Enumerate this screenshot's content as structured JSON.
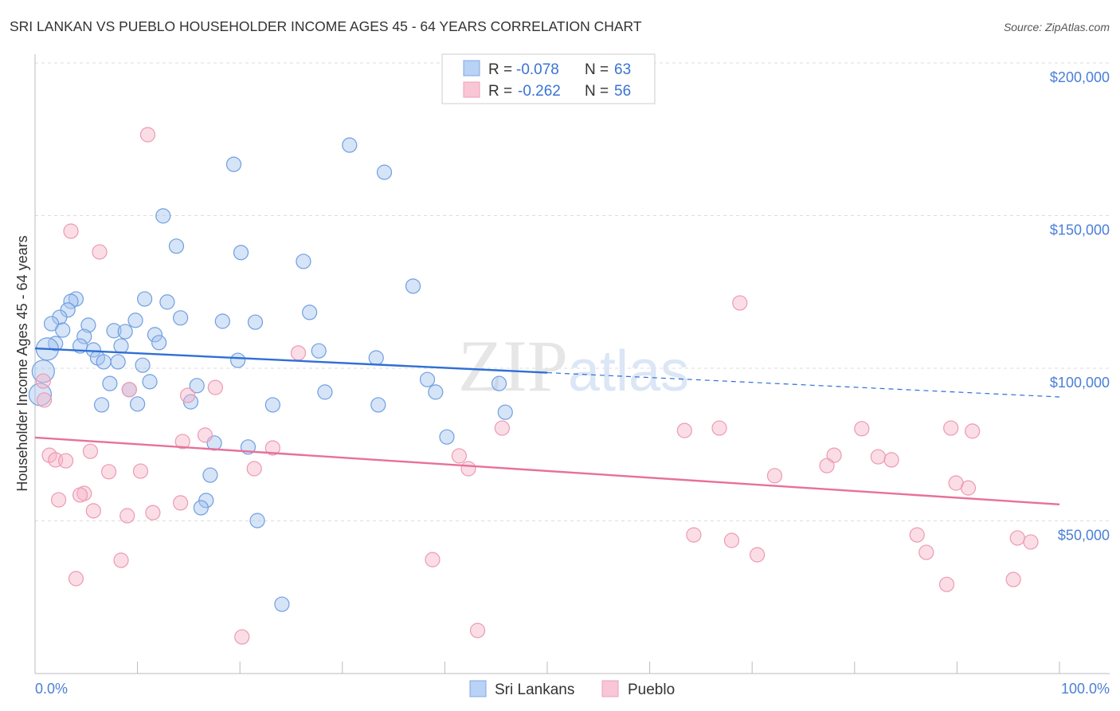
{
  "chart_data": {
    "type": "scatter",
    "title": "SRI LANKAN VS PUEBLO HOUSEHOLDER INCOME AGES 45 - 64 YEARS CORRELATION CHART",
    "source": "Source: ZipAtlas.com",
    "watermark": "ZIPatlas",
    "xlabel": "",
    "ylabel": "Householder Income Ages 45 - 64 years",
    "xlim": [
      0,
      100
    ],
    "ylim": [
      0,
      215000
    ],
    "x_tick_labels": [
      "0.0%",
      "100.0%"
    ],
    "y_ticks": [
      {
        "value": 200000,
        "label": "$200,000"
      },
      {
        "value": 150000,
        "label": "$150,000"
      },
      {
        "value": 100000,
        "label": "$100,000"
      },
      {
        "value": 50000,
        "label": "$50,000"
      }
    ],
    "grid": true,
    "legend": {
      "placement": "top-center",
      "entries": [
        {
          "r_label": "R = ",
          "r": "-0.078",
          "n_label": "N = ",
          "n": "63"
        },
        {
          "r_label": "R = ",
          "r": "-0.262",
          "n_label": "N = ",
          "n": "56"
        }
      ]
    },
    "bottom_legend": [
      "Sri Lankans",
      "Pueblo"
    ],
    "series": [
      {
        "name": "Sri Lankans",
        "color": "#6f9fe0",
        "line_color": "#2f6fd6",
        "trend": {
          "y_at_0": 106500,
          "y_at_100": 90600,
          "solid_until": 50
        },
        "points": [
          [
            19.4,
            166800
          ],
          [
            30.7,
            173100
          ],
          [
            34.1,
            164200
          ],
          [
            12.5,
            149900
          ],
          [
            13.8,
            140000
          ],
          [
            20.1,
            137900
          ],
          [
            26.2,
            135000
          ],
          [
            36.9,
            126900
          ],
          [
            4.0,
            122700
          ],
          [
            10.7,
            122700
          ],
          [
            3.5,
            121900
          ],
          [
            12.9,
            121700
          ],
          [
            3.2,
            119100
          ],
          [
            26.8,
            118300
          ],
          [
            2.4,
            116700
          ],
          [
            1.6,
            114600
          ],
          [
            14.2,
            116500
          ],
          [
            9.8,
            115700
          ],
          [
            18.3,
            115400
          ],
          [
            21.5,
            115100
          ],
          [
            5.2,
            114100
          ],
          [
            2.7,
            112500
          ],
          [
            7.7,
            112300
          ],
          [
            8.8,
            112000
          ],
          [
            11.7,
            111000
          ],
          [
            4.8,
            110400
          ],
          [
            2.0,
            108100
          ],
          [
            12.1,
            108400
          ],
          [
            4.4,
            107300
          ],
          [
            8.4,
            107300
          ],
          [
            1.2,
            106300
          ],
          [
            5.7,
            106000
          ],
          [
            27.7,
            105700
          ],
          [
            6.1,
            103400
          ],
          [
            6.7,
            102100
          ],
          [
            8.1,
            102100
          ],
          [
            19.8,
            102600
          ],
          [
            33.3,
            103400
          ],
          [
            10.5,
            101000
          ],
          [
            0.8,
            99000
          ],
          [
            38.3,
            96300
          ],
          [
            7.3,
            95000
          ],
          [
            11.2,
            95600
          ],
          [
            15.8,
            94300
          ],
          [
            45.3,
            95000
          ],
          [
            9.2,
            93000
          ],
          [
            28.3,
            92200
          ],
          [
            39.1,
            92200
          ],
          [
            0.5,
            91400
          ],
          [
            6.5,
            88000
          ],
          [
            10.0,
            88300
          ],
          [
            15.2,
            89000
          ],
          [
            23.2,
            88000
          ],
          [
            33.5,
            88000
          ],
          [
            45.9,
            85600
          ],
          [
            40.2,
            77500
          ],
          [
            17.5,
            75500
          ],
          [
            20.8,
            74200
          ],
          [
            17.1,
            65000
          ],
          [
            16.7,
            56700
          ],
          [
            16.2,
            54300
          ],
          [
            21.7,
            50100
          ],
          [
            24.1,
            22700
          ]
        ]
      },
      {
        "name": "Pueblo",
        "color": "#ec9ab4",
        "line_color": "#e8709a",
        "trend": {
          "y_at_0": 77300,
          "y_at_100": 55400,
          "solid_until": 100
        },
        "points": [
          [
            11.0,
            176500
          ],
          [
            3.5,
            144900
          ],
          [
            6.3,
            138100
          ],
          [
            68.8,
            121400
          ],
          [
            25.7,
            105000
          ],
          [
            0.8,
            95800
          ],
          [
            9.2,
            93000
          ],
          [
            14.9,
            91100
          ],
          [
            17.6,
            93700
          ],
          [
            0.9,
            89600
          ],
          [
            45.6,
            80400
          ],
          [
            63.4,
            79600
          ],
          [
            66.8,
            80400
          ],
          [
            80.7,
            80200
          ],
          [
            89.4,
            80400
          ],
          [
            91.5,
            79400
          ],
          [
            16.6,
            78100
          ],
          [
            14.4,
            76000
          ],
          [
            23.2,
            73900
          ],
          [
            1.4,
            71500
          ],
          [
            5.4,
            72800
          ],
          [
            2.0,
            70000
          ],
          [
            3.0,
            69700
          ],
          [
            78.0,
            71500
          ],
          [
            41.4,
            71300
          ],
          [
            82.3,
            71000
          ],
          [
            83.6,
            70000
          ],
          [
            21.4,
            67100
          ],
          [
            7.2,
            66100
          ],
          [
            10.3,
            66300
          ],
          [
            42.3,
            67100
          ],
          [
            77.3,
            68100
          ],
          [
            72.2,
            64800
          ],
          [
            89.9,
            62400
          ],
          [
            91.1,
            60800
          ],
          [
            4.8,
            59000
          ],
          [
            4.4,
            58500
          ],
          [
            2.3,
            56900
          ],
          [
            14.2,
            55900
          ],
          [
            5.7,
            53300
          ],
          [
            11.5,
            52700
          ],
          [
            9.0,
            51700
          ],
          [
            64.3,
            45400
          ],
          [
            86.1,
            45400
          ],
          [
            68.0,
            43600
          ],
          [
            95.9,
            44400
          ],
          [
            97.2,
            43100
          ],
          [
            70.5,
            38900
          ],
          [
            87.0,
            39700
          ],
          [
            8.4,
            37100
          ],
          [
            38.8,
            37300
          ],
          [
            4.0,
            31100
          ],
          [
            89.0,
            29200
          ],
          [
            95.5,
            30800
          ],
          [
            20.2,
            12000
          ],
          [
            43.2,
            14100
          ]
        ]
      }
    ]
  }
}
